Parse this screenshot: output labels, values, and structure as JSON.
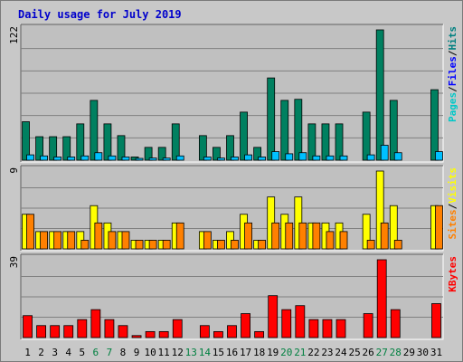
{
  "title": "Daily usage for July 2019",
  "chart_data": [
    {
      "type": "bar",
      "panel": "pages-files-hits",
      "ymax_label": "122",
      "ylim": [
        0,
        122
      ],
      "legend": [
        "Pages",
        "/",
        "Files",
        "/",
        "Hits"
      ],
      "legend_colors": [
        "#00c8c8",
        "#000000",
        "#0000ff",
        "#000000",
        "#008080"
      ],
      "categories": [
        "1",
        "2",
        "3",
        "4",
        "5",
        "6",
        "7",
        "8",
        "9",
        "10",
        "11",
        "12",
        "13",
        "14",
        "15",
        "16",
        "17",
        "18",
        "19",
        "20",
        "21",
        "22",
        "23",
        "24",
        "25",
        "26",
        "27",
        "28",
        "29",
        "30",
        "31"
      ],
      "series": [
        {
          "name": "Hits",
          "color": "#008060",
          "values": [
            36,
            22,
            22,
            22,
            34,
            56,
            34,
            23,
            3,
            12,
            12,
            34,
            0,
            23,
            12,
            23,
            45,
            12,
            77,
            56,
            57,
            34,
            34,
            34,
            0,
            45,
            122,
            56,
            0,
            0,
            66
          ]
        },
        {
          "name": "Files",
          "color": "#00c0ff",
          "values": [
            5,
            4,
            3,
            3,
            4,
            7,
            4,
            3,
            1,
            2,
            2,
            4,
            0,
            3,
            2,
            3,
            5,
            3,
            8,
            6,
            7,
            4,
            4,
            4,
            0,
            5,
            14,
            7,
            0,
            0,
            8
          ]
        }
      ]
    },
    {
      "type": "bar",
      "panel": "sites-visits",
      "ymax_label": "9",
      "ylim": [
        0,
        9
      ],
      "legend": [
        "Sites",
        "/",
        "Visits"
      ],
      "legend_colors": [
        "#ff8000",
        "#000000",
        "#ffff00"
      ],
      "categories": [
        "1",
        "2",
        "3",
        "4",
        "5",
        "6",
        "7",
        "8",
        "9",
        "10",
        "11",
        "12",
        "13",
        "14",
        "15",
        "16",
        "17",
        "18",
        "19",
        "20",
        "21",
        "22",
        "23",
        "24",
        "25",
        "26",
        "27",
        "28",
        "29",
        "30",
        "31"
      ],
      "series": [
        {
          "name": "Visits",
          "color": "#ffff00",
          "values": [
            4,
            2,
            2,
            2,
            2,
            5,
            3,
            2,
            1,
            1,
            1,
            3,
            0,
            2,
            1,
            2,
            4,
            1,
            6,
            4,
            6,
            3,
            3,
            3,
            0,
            4,
            9,
            5,
            0,
            0,
            5
          ]
        },
        {
          "name": "Sites",
          "color": "#ff8000",
          "values": [
            4,
            2,
            2,
            2,
            1,
            3,
            2,
            2,
            1,
            1,
            1,
            3,
            0,
            2,
            1,
            1,
            3,
            1,
            3,
            3,
            3,
            3,
            2,
            2,
            0,
            1,
            3,
            1,
            0,
            0,
            5
          ]
        }
      ]
    },
    {
      "type": "bar",
      "panel": "kbytes",
      "ymax_label": "39",
      "ylim": [
        0,
        39
      ],
      "legend": [
        "KBytes"
      ],
      "legend_colors": [
        "#ff0000"
      ],
      "categories": [
        "1",
        "2",
        "3",
        "4",
        "5",
        "6",
        "7",
        "8",
        "9",
        "10",
        "11",
        "12",
        "13",
        "14",
        "15",
        "16",
        "17",
        "18",
        "19",
        "20",
        "21",
        "22",
        "23",
        "24",
        "25",
        "26",
        "27",
        "28",
        "29",
        "30",
        "31"
      ],
      "series": [
        {
          "name": "KBytes",
          "color": "#ff0000",
          "values": [
            11,
            6,
            6,
            6,
            9,
            14,
            9,
            6,
            1,
            3,
            3,
            9,
            0,
            6,
            3,
            6,
            12,
            3,
            21,
            14,
            16,
            9,
            9,
            9,
            0,
            12,
            39,
            14,
            0,
            0,
            17
          ]
        }
      ]
    }
  ],
  "weekend_days": [
    "6",
    "7",
    "13",
    "14",
    "20",
    "21",
    "27",
    "28"
  ],
  "colors": {
    "weekday_label": "#000000",
    "weekend_label": "#008040",
    "plot_bg": "#c0c0c0",
    "grid": "#808080",
    "title": "#0000cc"
  }
}
